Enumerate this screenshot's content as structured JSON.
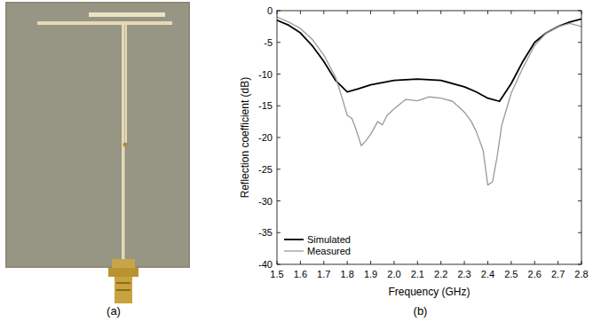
{
  "photo": {
    "caption": "(a)"
  },
  "chart_data": {
    "type": "line",
    "caption": "(b)",
    "x_label": "Frequency (GHz)",
    "y_label": "Reflection coefficient (dB)",
    "xlim": [
      1.5,
      2.8
    ],
    "xticks": [
      1.5,
      1.6,
      1.7,
      1.8,
      1.9,
      {
        "value": 2,
        "label": "2.0"
      },
      2.1,
      2.2,
      2.3,
      2.4,
      2.5,
      2.6,
      2.7,
      2.8
    ],
    "ylim": [
      -40,
      0
    ],
    "yticks": [
      -40,
      -35,
      -30,
      -25,
      -20,
      -15,
      -10,
      -5,
      0
    ],
    "grid": false,
    "legend": "lower left",
    "series": [
      {
        "name": "Simulated",
        "color": "#000000",
        "x": [
          1.5,
          1.55,
          1.6,
          1.65,
          1.7,
          1.75,
          1.8,
          1.85,
          1.9,
          2.0,
          2.1,
          2.2,
          2.3,
          2.35,
          2.4,
          2.45,
          2.5,
          2.55,
          2.6,
          2.65,
          2.7,
          2.75,
          2.8
        ],
        "values": [
          -1.5,
          -2.3,
          -3.5,
          -5.5,
          -8,
          -11,
          -12.8,
          -12.3,
          -11.7,
          -11.0,
          -10.8,
          -11.0,
          -12.0,
          -12.8,
          -13.8,
          -14.3,
          -11.5,
          -8,
          -5,
          -3.5,
          -2.5,
          -1.8,
          -1.3
        ]
      },
      {
        "name": "Measured",
        "color": "#999999",
        "x": [
          1.5,
          1.55,
          1.6,
          1.65,
          1.7,
          1.75,
          1.78,
          1.8,
          1.82,
          1.84,
          1.86,
          1.88,
          1.9,
          1.93,
          1.95,
          1.97,
          2.0,
          2.05,
          2.1,
          2.15,
          2.2,
          2.25,
          2.3,
          2.33,
          2.35,
          2.38,
          2.4,
          2.42,
          2.44,
          2.46,
          2.5,
          2.55,
          2.6,
          2.65,
          2.7,
          2.75,
          2.8
        ],
        "values": [
          -1.0,
          -1.8,
          -2.8,
          -4.5,
          -7,
          -10.5,
          -14,
          -16.5,
          -17,
          -19,
          -21.3,
          -20.5,
          -19.5,
          -17.5,
          -18,
          -16.5,
          -15.5,
          -14,
          -14.2,
          -13.6,
          -13.8,
          -14.3,
          -16,
          -17.5,
          -19,
          -22,
          -27.5,
          -27,
          -23,
          -18,
          -13,
          -9,
          -5.5,
          -3.5,
          -2.5,
          -2.0,
          -2.5
        ]
      }
    ]
  }
}
